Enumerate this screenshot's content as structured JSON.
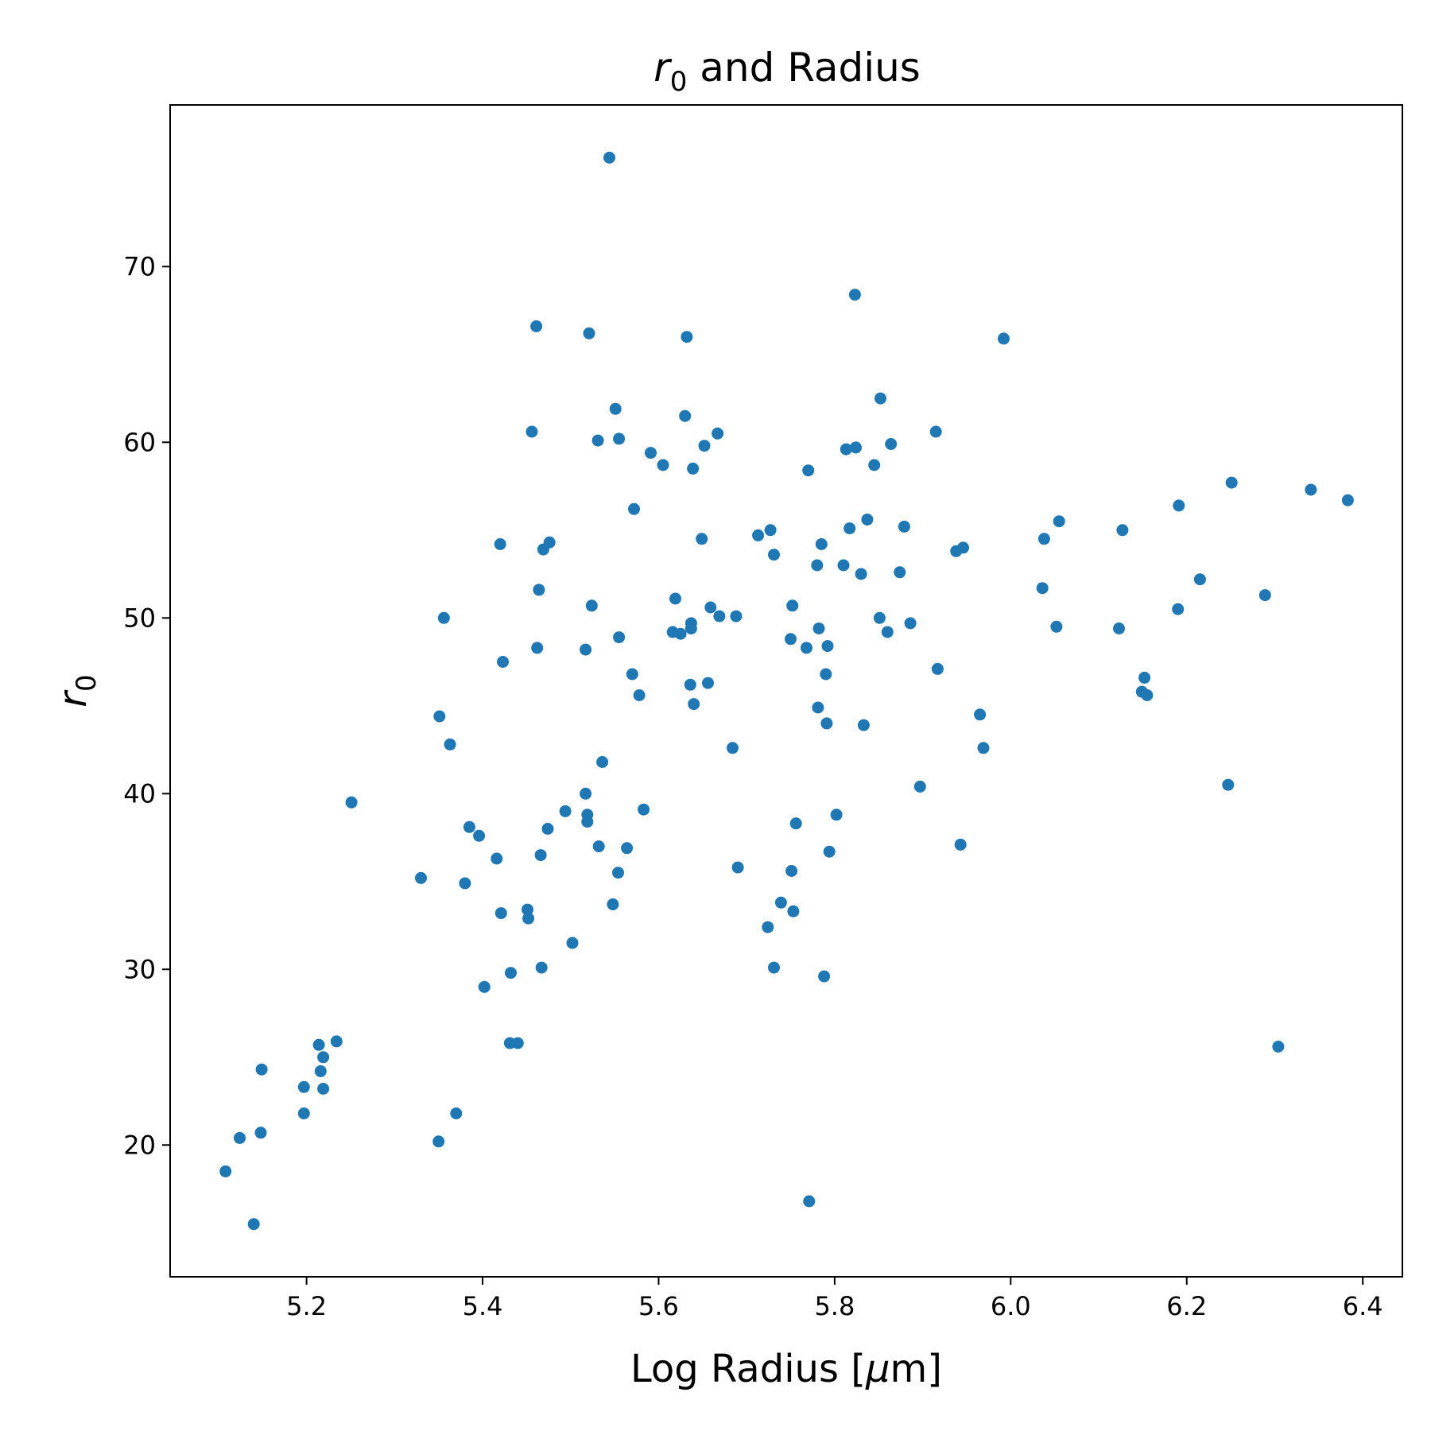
{
  "chart_data": {
    "type": "scatter",
    "title": {
      "symbol": "r",
      "subscript": "0",
      "text": " and Radius"
    },
    "xlabel": {
      "prefix": "Log Radius [",
      "symbol": "μ",
      "suffix": "m]"
    },
    "ylabel": {
      "symbol": "r",
      "subscript": "0"
    },
    "xlim": [
      5.045,
      6.445
    ],
    "ylim": [
      12.5,
      79.2
    ],
    "xticks": [
      5.2,
      5.4,
      5.6,
      5.8,
      6.0,
      6.2,
      6.4
    ],
    "xtick_labels": [
      "5.2",
      "5.4",
      "5.6",
      "5.8",
      "6.0",
      "6.2",
      "6.4"
    ],
    "yticks": [
      20,
      30,
      40,
      50,
      60,
      70
    ],
    "ytick_labels": [
      "20",
      "30",
      "40",
      "50",
      "60",
      "70"
    ],
    "grid": false,
    "marker_color": "#1f77b4",
    "points": [
      [
        5.108,
        18.5
      ],
      [
        5.14,
        15.5
      ],
      [
        5.124,
        20.4
      ],
      [
        5.148,
        20.7
      ],
      [
        5.149,
        24.3
      ],
      [
        5.197,
        23.3
      ],
      [
        5.197,
        21.8
      ],
      [
        5.214,
        25.7
      ],
      [
        5.216,
        24.2
      ],
      [
        5.219,
        25.0
      ],
      [
        5.219,
        23.2
      ],
      [
        5.234,
        25.9
      ],
      [
        5.251,
        39.5
      ],
      [
        5.33,
        35.2
      ],
      [
        5.35,
        20.2
      ],
      [
        5.351,
        44.4
      ],
      [
        5.356,
        50.0
      ],
      [
        5.363,
        42.8
      ],
      [
        5.37,
        21.8
      ],
      [
        5.38,
        34.9
      ],
      [
        5.385,
        38.1
      ],
      [
        5.396,
        37.6
      ],
      [
        5.402,
        29.0
      ],
      [
        5.416,
        36.3
      ],
      [
        5.42,
        54.2
      ],
      [
        5.421,
        33.2
      ],
      [
        5.423,
        47.5
      ],
      [
        5.431,
        25.8
      ],
      [
        5.432,
        29.8
      ],
      [
        5.44,
        25.8
      ],
      [
        5.451,
        33.4
      ],
      [
        5.452,
        32.9
      ],
      [
        5.456,
        60.6
      ],
      [
        5.461,
        66.6
      ],
      [
        5.462,
        48.3
      ],
      [
        5.464,
        51.6
      ],
      [
        5.466,
        36.5
      ],
      [
        5.467,
        30.1
      ],
      [
        5.469,
        53.9
      ],
      [
        5.474,
        38.0
      ],
      [
        5.476,
        54.3
      ],
      [
        5.494,
        39.0
      ],
      [
        5.502,
        31.5
      ],
      [
        5.517,
        40.0
      ],
      [
        5.517,
        48.2
      ],
      [
        5.519,
        38.8
      ],
      [
        5.519,
        38.4
      ],
      [
        5.521,
        66.2
      ],
      [
        5.524,
        50.7
      ],
      [
        5.531,
        60.1
      ],
      [
        5.532,
        37.0
      ],
      [
        5.536,
        41.8
      ],
      [
        5.544,
        76.2
      ],
      [
        5.548,
        33.7
      ],
      [
        5.551,
        61.9
      ],
      [
        5.554,
        35.5
      ],
      [
        5.555,
        60.2
      ],
      [
        5.555,
        48.9
      ],
      [
        5.564,
        36.9
      ],
      [
        5.57,
        46.8
      ],
      [
        5.572,
        56.2
      ],
      [
        5.578,
        45.6
      ],
      [
        5.583,
        39.1
      ],
      [
        5.591,
        59.4
      ],
      [
        5.605,
        58.7
      ],
      [
        5.616,
        49.2
      ],
      [
        5.619,
        51.1
      ],
      [
        5.625,
        49.1
      ],
      [
        5.63,
        61.5
      ],
      [
        5.632,
        66.0
      ],
      [
        5.636,
        46.2
      ],
      [
        5.637,
        49.7
      ],
      [
        5.637,
        49.4
      ],
      [
        5.639,
        58.5
      ],
      [
        5.64,
        45.1
      ],
      [
        5.649,
        54.5
      ],
      [
        5.652,
        59.8
      ],
      [
        5.656,
        46.3
      ],
      [
        5.659,
        50.6
      ],
      [
        5.667,
        60.5
      ],
      [
        5.669,
        50.1
      ],
      [
        5.684,
        42.6
      ],
      [
        5.688,
        50.1
      ],
      [
        5.69,
        35.8
      ],
      [
        5.713,
        54.7
      ],
      [
        5.724,
        32.4
      ],
      [
        5.727,
        55.0
      ],
      [
        5.731,
        53.6
      ],
      [
        5.731,
        30.1
      ],
      [
        5.739,
        33.8
      ],
      [
        5.75,
        48.8
      ],
      [
        5.751,
        35.6
      ],
      [
        5.752,
        50.7
      ],
      [
        5.753,
        33.3
      ],
      [
        5.756,
        38.3
      ],
      [
        5.768,
        48.3
      ],
      [
        5.77,
        58.4
      ],
      [
        5.771,
        16.8
      ],
      [
        5.78,
        53.0
      ],
      [
        5.781,
        44.9
      ],
      [
        5.782,
        49.4
      ],
      [
        5.785,
        54.2
      ],
      [
        5.788,
        29.6
      ],
      [
        5.79,
        46.8
      ],
      [
        5.791,
        44.0
      ],
      [
        5.792,
        48.4
      ],
      [
        5.794,
        36.7
      ],
      [
        5.802,
        38.8
      ],
      [
        5.81,
        53.0
      ],
      [
        5.813,
        59.6
      ],
      [
        5.817,
        55.1
      ],
      [
        5.823,
        68.4
      ],
      [
        5.824,
        59.7
      ],
      [
        5.83,
        52.5
      ],
      [
        5.833,
        43.9
      ],
      [
        5.837,
        55.6
      ],
      [
        5.845,
        58.7
      ],
      [
        5.851,
        50.0
      ],
      [
        5.852,
        62.5
      ],
      [
        5.86,
        49.2
      ],
      [
        5.864,
        59.9
      ],
      [
        5.874,
        52.6
      ],
      [
        5.879,
        55.2
      ],
      [
        5.886,
        49.7
      ],
      [
        5.897,
        40.4
      ],
      [
        5.915,
        60.6
      ],
      [
        5.917,
        47.1
      ],
      [
        5.938,
        53.8
      ],
      [
        5.943,
        37.1
      ],
      [
        5.946,
        54.0
      ],
      [
        5.965,
        44.5
      ],
      [
        5.969,
        42.6
      ],
      [
        5.992,
        65.9
      ],
      [
        6.036,
        51.7
      ],
      [
        6.038,
        54.5
      ],
      [
        6.052,
        49.5
      ],
      [
        6.055,
        55.5
      ],
      [
        6.123,
        49.4
      ],
      [
        6.127,
        55.0
      ],
      [
        6.149,
        45.8
      ],
      [
        6.152,
        46.6
      ],
      [
        6.155,
        45.6
      ],
      [
        6.19,
        50.5
      ],
      [
        6.191,
        56.4
      ],
      [
        6.215,
        52.2
      ],
      [
        6.247,
        40.5
      ],
      [
        6.251,
        57.7
      ],
      [
        6.289,
        51.3
      ],
      [
        6.304,
        25.6
      ],
      [
        6.341,
        57.3
      ],
      [
        6.383,
        56.7
      ]
    ]
  }
}
